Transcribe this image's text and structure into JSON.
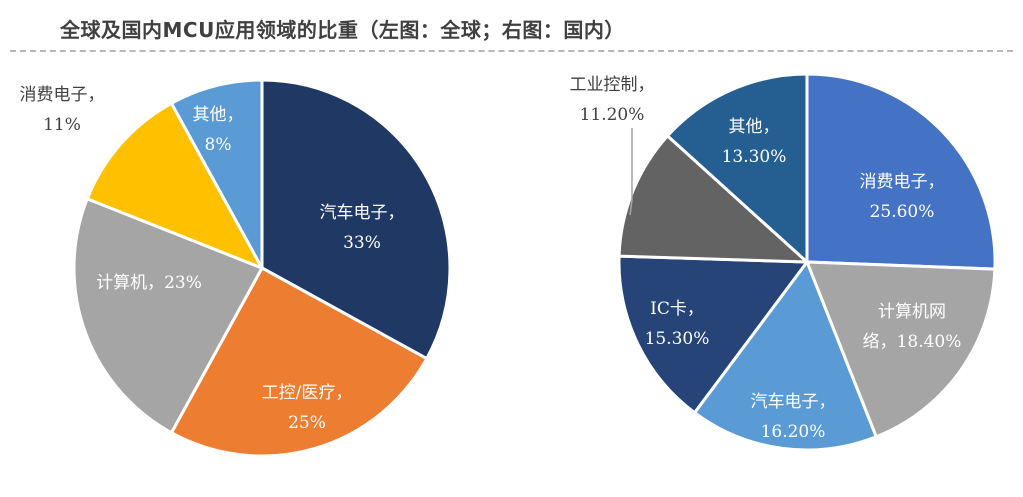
{
  "title": "全球及国内MCU应用领域的比重（左图：全球；右图：国内）",
  "chart_data": [
    {
      "type": "pie",
      "title": "全球",
      "slices": [
        {
          "name": "汽车电子",
          "value": 33,
          "label": "33%",
          "color": "#1f3864"
        },
        {
          "name": "工控/医疗",
          "value": 25,
          "label": "25%",
          "color": "#ed7d31"
        },
        {
          "name": "计算机",
          "value": 23,
          "label": "23%",
          "color": "#a5a5a5"
        },
        {
          "name": "消费电子",
          "value": 11,
          "label": "11%",
          "color": "#ffc000"
        },
        {
          "name": "其他",
          "value": 8,
          "label": "8%",
          "color": "#5b9bd5"
        }
      ]
    },
    {
      "type": "pie",
      "title": "国内",
      "slices": [
        {
          "name": "消费电子",
          "value": 25.6,
          "label": "25.60%",
          "color": "#4472c4"
        },
        {
          "name": "计算机网络",
          "value": 18.4,
          "label": "18.40%",
          "color": "#a5a5a5"
        },
        {
          "name": "汽车电子",
          "value": 16.2,
          "label": "16.20%",
          "color": "#5b9bd5"
        },
        {
          "name": "IC卡",
          "value": 15.3,
          "label": "15.30%",
          "color": "#264478"
        },
        {
          "name": "工业控制",
          "value": 11.2,
          "label": "11.20%",
          "color": "#636363"
        },
        {
          "name": "其他",
          "value": 13.3,
          "label": "13.30%",
          "color": "#255e91"
        }
      ]
    }
  ]
}
